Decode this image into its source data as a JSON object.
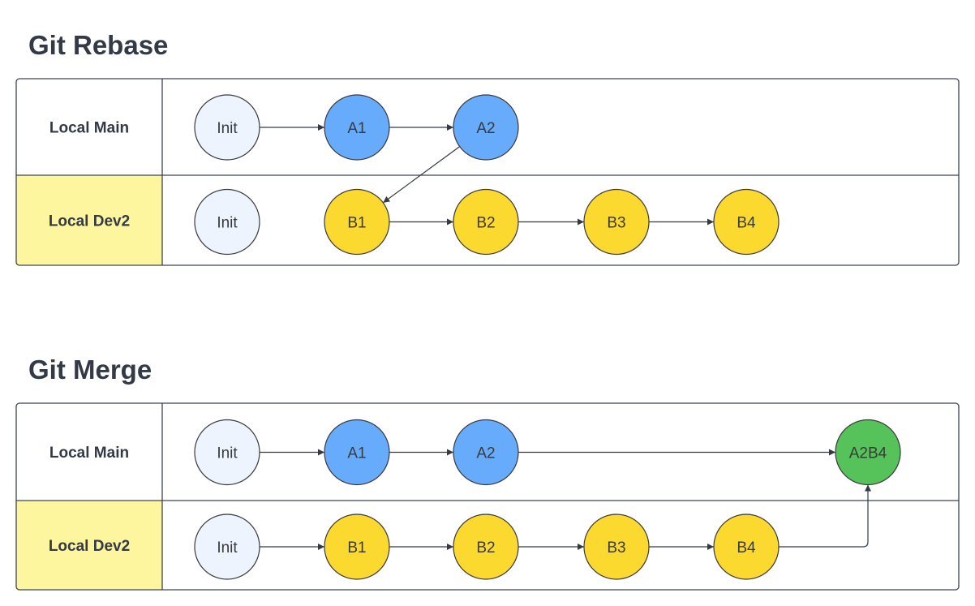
{
  "colors": {
    "init": "#edf4fe",
    "main_commit": "#67abfd",
    "dev_commit": "#fbd92f",
    "merge_commit": "#55c25a",
    "lane_label_main_bg": "#ffffff",
    "lane_label_dev_bg": "#fef59f"
  },
  "diagrams": [
    {
      "id": "rebase",
      "title": "Git Rebase",
      "lanes": [
        {
          "id": "main",
          "label": "Local Main",
          "kind": "main"
        },
        {
          "id": "dev",
          "label": "Local Dev2",
          "kind": "dev"
        }
      ],
      "nodes": [
        {
          "id": "r-main-init",
          "label": "Init",
          "lane": "main",
          "col": 0,
          "kind": "init"
        },
        {
          "id": "r-main-a1",
          "label": "A1",
          "lane": "main",
          "col": 1,
          "kind": "main_commit"
        },
        {
          "id": "r-main-a2",
          "label": "A2",
          "lane": "main",
          "col": 2,
          "kind": "main_commit"
        },
        {
          "id": "r-dev-init",
          "label": "Init",
          "lane": "dev",
          "col": 0,
          "kind": "init"
        },
        {
          "id": "r-dev-b1",
          "label": "B1",
          "lane": "dev",
          "col": 1,
          "kind": "dev_commit"
        },
        {
          "id": "r-dev-b2",
          "label": "B2",
          "lane": "dev",
          "col": 2,
          "kind": "dev_commit"
        },
        {
          "id": "r-dev-b3",
          "label": "B3",
          "lane": "dev",
          "col": 3,
          "kind": "dev_commit"
        },
        {
          "id": "r-dev-b4",
          "label": "B4",
          "lane": "dev",
          "col": 4,
          "kind": "dev_commit"
        }
      ],
      "edges": [
        {
          "from": "r-main-init",
          "to": "r-main-a1",
          "style": "straight"
        },
        {
          "from": "r-main-a1",
          "to": "r-main-a2",
          "style": "straight"
        },
        {
          "from": "r-main-a2",
          "to": "r-dev-b1",
          "style": "diagonal"
        },
        {
          "from": "r-dev-b1",
          "to": "r-dev-b2",
          "style": "straight"
        },
        {
          "from": "r-dev-b2",
          "to": "r-dev-b3",
          "style": "straight"
        },
        {
          "from": "r-dev-b3",
          "to": "r-dev-b4",
          "style": "straight"
        }
      ]
    },
    {
      "id": "merge",
      "title": "Git Merge",
      "lanes": [
        {
          "id": "main",
          "label": "Local Main",
          "kind": "main"
        },
        {
          "id": "dev",
          "label": "Local Dev2",
          "kind": "dev"
        }
      ],
      "nodes": [
        {
          "id": "m-main-init",
          "label": "Init",
          "lane": "main",
          "col": 0,
          "kind": "init"
        },
        {
          "id": "m-main-a1",
          "label": "A1",
          "lane": "main",
          "col": 1,
          "kind": "main_commit"
        },
        {
          "id": "m-main-a2",
          "label": "A2",
          "lane": "main",
          "col": 2,
          "kind": "main_commit"
        },
        {
          "id": "m-main-a2b4",
          "label": "A2B4",
          "lane": "main",
          "col": 5,
          "kind": "merge_commit"
        },
        {
          "id": "m-dev-init",
          "label": "Init",
          "lane": "dev",
          "col": 0,
          "kind": "init"
        },
        {
          "id": "m-dev-b1",
          "label": "B1",
          "lane": "dev",
          "col": 1,
          "kind": "dev_commit"
        },
        {
          "id": "m-dev-b2",
          "label": "B2",
          "lane": "dev",
          "col": 2,
          "kind": "dev_commit"
        },
        {
          "id": "m-dev-b3",
          "label": "B3",
          "lane": "dev",
          "col": 3,
          "kind": "dev_commit"
        },
        {
          "id": "m-dev-b4",
          "label": "B4",
          "lane": "dev",
          "col": 4,
          "kind": "dev_commit"
        }
      ],
      "edges": [
        {
          "from": "m-main-init",
          "to": "m-main-a1",
          "style": "straight"
        },
        {
          "from": "m-main-a1",
          "to": "m-main-a2",
          "style": "straight"
        },
        {
          "from": "m-main-a2",
          "to": "m-main-a2b4",
          "style": "straight"
        },
        {
          "from": "m-dev-init",
          "to": "m-dev-b1",
          "style": "straight"
        },
        {
          "from": "m-dev-b1",
          "to": "m-dev-b2",
          "style": "straight"
        },
        {
          "from": "m-dev-b2",
          "to": "m-dev-b3",
          "style": "straight"
        },
        {
          "from": "m-dev-b3",
          "to": "m-dev-b4",
          "style": "straight"
        },
        {
          "from": "m-dev-b4",
          "to": "m-main-a2b4",
          "style": "elbow"
        }
      ]
    }
  ]
}
